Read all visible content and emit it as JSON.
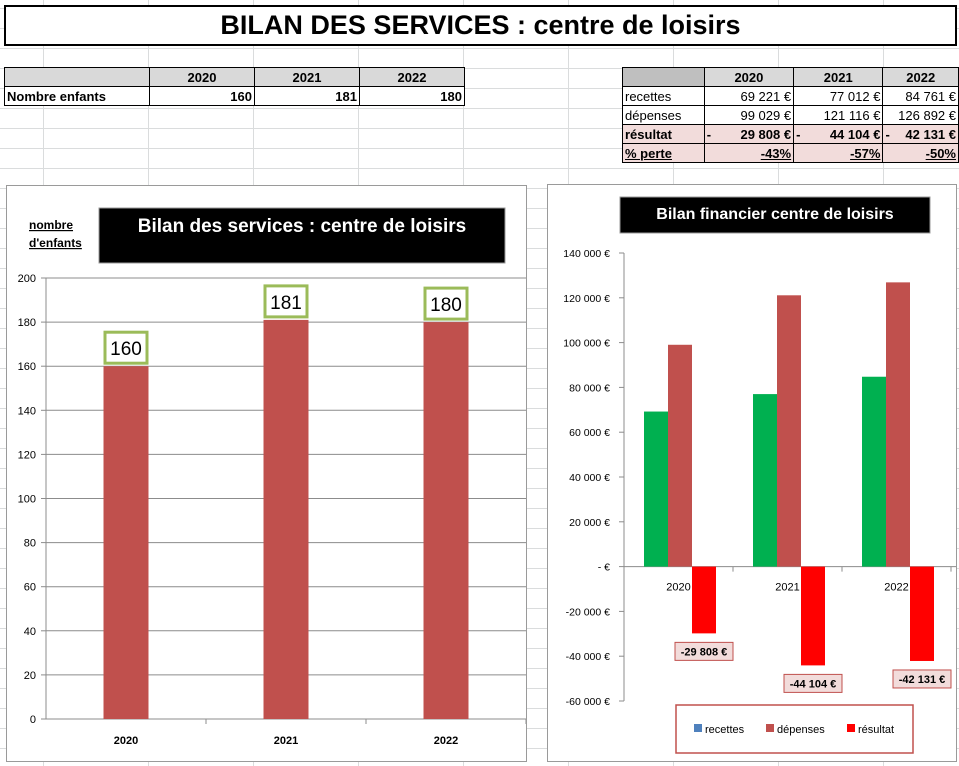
{
  "banner_title": "BILAN DES SERVICES : centre de loisirs",
  "children_table": {
    "years": [
      "2020",
      "2021",
      "2022"
    ],
    "row_label": "Nombre enfants",
    "values": [
      "160",
      "181",
      "180"
    ]
  },
  "finance_table": {
    "years": [
      "2020",
      "2021",
      "2022"
    ],
    "rows": [
      {
        "label": "recettes",
        "values": [
          "69 221 €",
          "77 012 €",
          "84 761 €"
        ]
      },
      {
        "label": "dépenses",
        "values": [
          "99 029 €",
          "121 116 €",
          "126 892 €"
        ]
      },
      {
        "label": "résultat",
        "values": [
          "29 808 €",
          "44 104 €",
          "42 131 €"
        ]
      },
      {
        "label": "% perte",
        "values": [
          "-43%",
          "-57%",
          "-50%"
        ]
      }
    ],
    "minus_sign": "-"
  },
  "colors": {
    "recettes": "#00b050",
    "depenses": "#c0504d",
    "resultat": "#ff0000",
    "children_bar": "#c0504d",
    "label_border": "#9bbb59",
    "legend_recettes": "#4f81bd"
  },
  "chart_data": [
    {
      "type": "bar",
      "title": "Bilan des services : centre de loisirs",
      "ylabel_line1": "nombre",
      "ylabel_line2": "d'enfants",
      "categories": [
        "2020",
        "2021",
        "2022"
      ],
      "values": [
        160,
        181,
        180
      ],
      "data_labels": [
        "160",
        "181",
        "180"
      ],
      "ylim": [
        0,
        200
      ],
      "yticks": [
        "0",
        "20",
        "40",
        "60",
        "80",
        "100",
        "120",
        "140",
        "160",
        "180",
        "200"
      ],
      "grid": true,
      "legend": "none"
    },
    {
      "type": "bar",
      "title": "Bilan financier centre de loisirs",
      "categories": [
        "2020",
        "2021",
        "2022"
      ],
      "series": [
        {
          "name": "recettes",
          "values": [
            69221,
            77012,
            84761
          ]
        },
        {
          "name": "dépenses",
          "values": [
            99029,
            121116,
            126892
          ]
        },
        {
          "name": "résultat",
          "values": [
            -29808,
            -44104,
            -42131
          ]
        }
      ],
      "data_labels": [
        "-29 808 €",
        "-44 104 €",
        "-42 131 €"
      ],
      "ylim": [
        -60000,
        140000
      ],
      "yticks": [
        "-60 000 €",
        "-40 000 €",
        "-20 000 €",
        "-   €",
        "20 000 €",
        "40 000 €",
        "60 000 €",
        "80 000 €",
        "100 000 €",
        "120 000 €",
        "140 000 €"
      ],
      "grid": false,
      "legend": "bottom"
    }
  ]
}
